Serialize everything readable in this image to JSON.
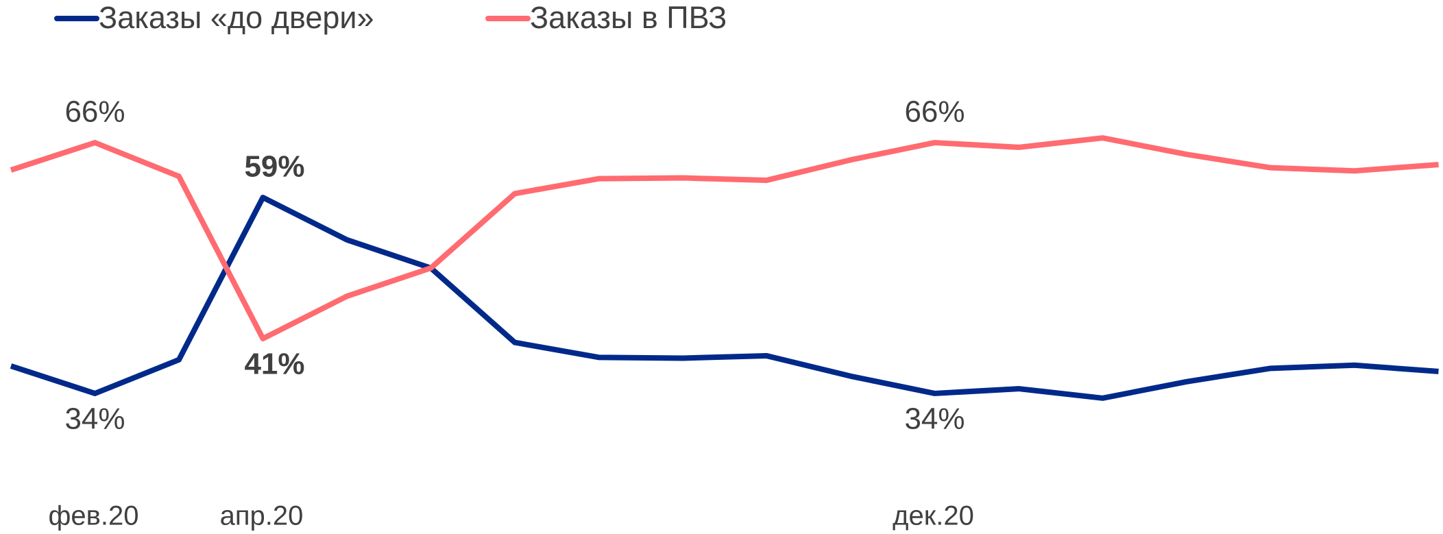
{
  "chart_data": {
    "type": "line",
    "categories": [
      null,
      "фев.20",
      null,
      "апр.20",
      null,
      null,
      null,
      null,
      null,
      null,
      null,
      "дек.20",
      null,
      null,
      null,
      null,
      null,
      null
    ],
    "ylim": [
      20,
      80
    ],
    "legend": "top-left",
    "series": [
      {
        "name": "Заказы «до двери»",
        "color": "#00298a",
        "values": [
          37.5,
          34,
          38.3,
          59,
          53.6,
          50,
          40.5,
          38.6,
          38.5,
          38.8,
          36.2,
          34,
          34.6,
          33.4,
          35.5,
          37.2,
          37.6,
          36.8
        ],
        "value_labels": [
          null,
          "34%",
          null,
          "59%",
          null,
          null,
          null,
          null,
          null,
          null,
          null,
          "34%",
          null,
          null,
          null,
          null,
          null,
          null
        ],
        "bold_labels": [
          3
        ]
      },
      {
        "name": "Заказы в ПВЗ",
        "color": "#ff6b70",
        "values": [
          62.5,
          66,
          61.7,
          41,
          46.4,
          50,
          59.5,
          61.4,
          61.5,
          61.2,
          63.8,
          66,
          65.4,
          66.6,
          64.5,
          62.8,
          62.4,
          63.2
        ],
        "value_labels": [
          null,
          "66%",
          null,
          "41%",
          null,
          null,
          null,
          null,
          null,
          null,
          null,
          "66%",
          null,
          null,
          null,
          null,
          null,
          null
        ],
        "bold_labels": [
          3
        ]
      }
    ]
  }
}
